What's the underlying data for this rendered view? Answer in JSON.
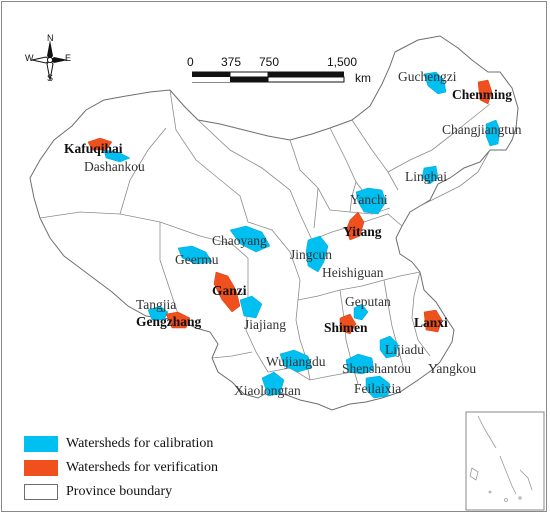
{
  "legend": {
    "calibration": {
      "label": "Watersheds for calibration",
      "color": "#00c0f2"
    },
    "verification": {
      "label": "Watersheds for verification",
      "color": "#f0501e"
    },
    "boundary": {
      "label": "Province boundary",
      "color": "#ffffff",
      "stroke": "#6e6e6e"
    }
  },
  "compass": {
    "north": "N",
    "south": "S",
    "east": "E",
    "west": "W"
  },
  "scale_bar": {
    "ticks": [
      "0",
      "375",
      "750",
      "1,500"
    ],
    "unit": "km"
  },
  "stations": {
    "guchengzi": "Guchengzi",
    "chenming": "Chenming",
    "changjiangtun": "Changjiangtun",
    "kafuqihai": "Kafuqihai",
    "dashankou": "Dashankou",
    "linghai": "Linghai",
    "yanchi": "Yanchi",
    "yitang": "Yitang",
    "chaoyang": "Chaoyang",
    "geermu": "Geermu",
    "jingcun": "Jingcun",
    "heishiguan": "Heishiguan",
    "ganzi": "Ganzi",
    "tangjia": "Tangjia",
    "gengzhang": "Gengzhang",
    "jiajiang": "Jiajiang",
    "geputan": "Geputan",
    "shimen": "Shimen",
    "lanxi": "Lanxi",
    "lijiadu": "Lijiadu",
    "wujiangdu": "Wujiangdu",
    "shenshantou": "Shenshantou",
    "yangkou": "Yangkou",
    "xiaolongtan": "Xiaolongtan",
    "feilaixia": "Feilaixia"
  }
}
